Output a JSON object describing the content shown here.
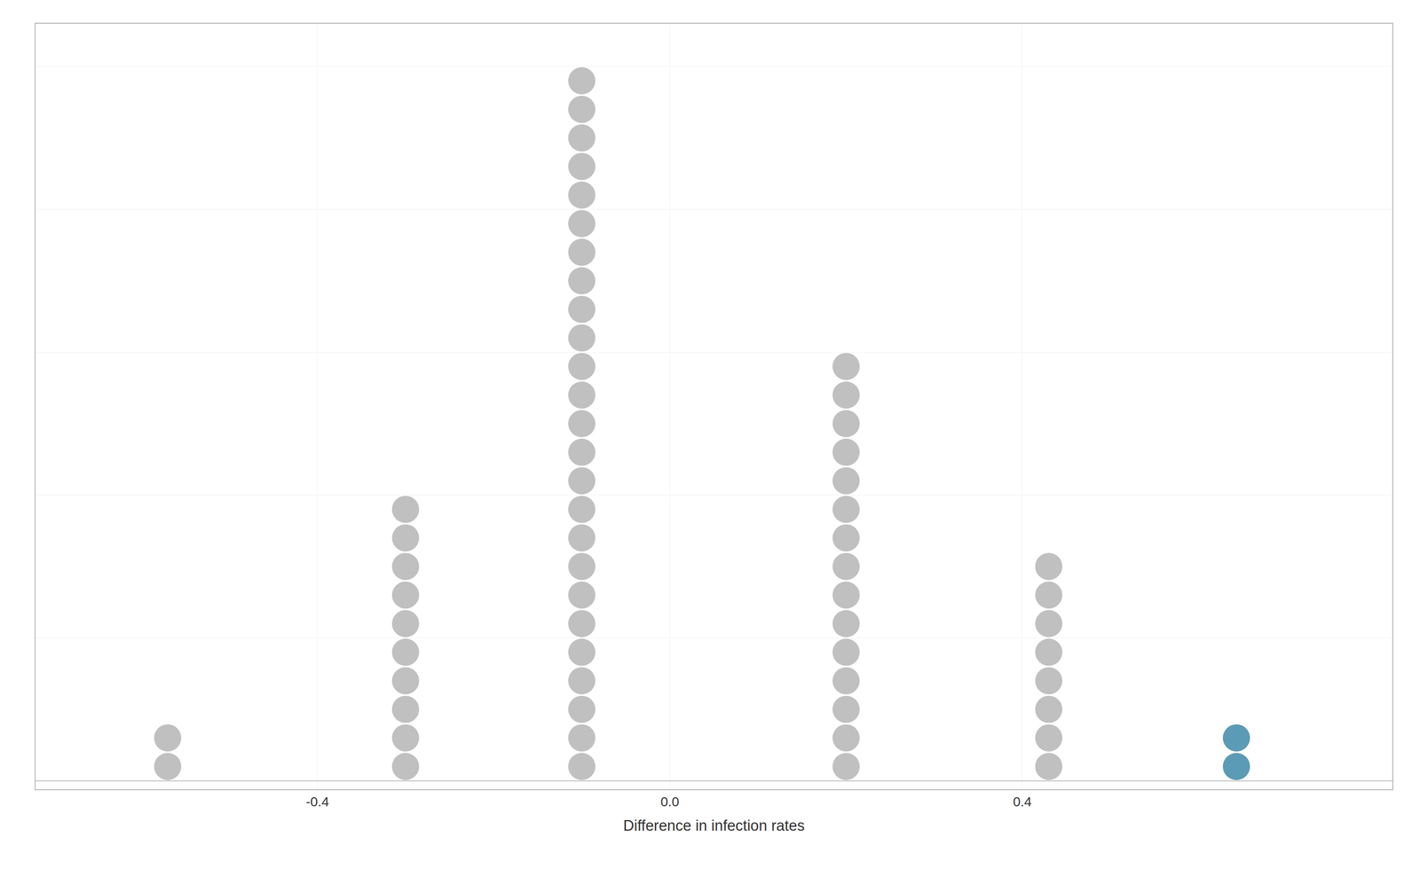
{
  "chart_data": {
    "type": "dot",
    "xlabel": "Difference in infection rates",
    "x": [
      -0.57,
      -0.3,
      -0.1,
      0.2,
      0.43,
      0.643
    ],
    "values": [
      2,
      10,
      25,
      15,
      8,
      2
    ],
    "colors": [
      "#c0c0c0",
      "#c0c0c0",
      "#c0c0c0",
      "#c0c0c0",
      "#c0c0c0",
      "#5b9bb5"
    ],
    "xlim": [
      -0.72,
      0.82
    ],
    "ylim": [
      -0.3,
      26.5
    ],
    "xticks": [
      -0.4,
      {
        "value": 0.0,
        "label": "0.0"
      },
      0.4
    ],
    "yticks": [
      0,
      5,
      10,
      15,
      20,
      25
    ],
    "grid": true,
    "tick_labels": "x"
  }
}
